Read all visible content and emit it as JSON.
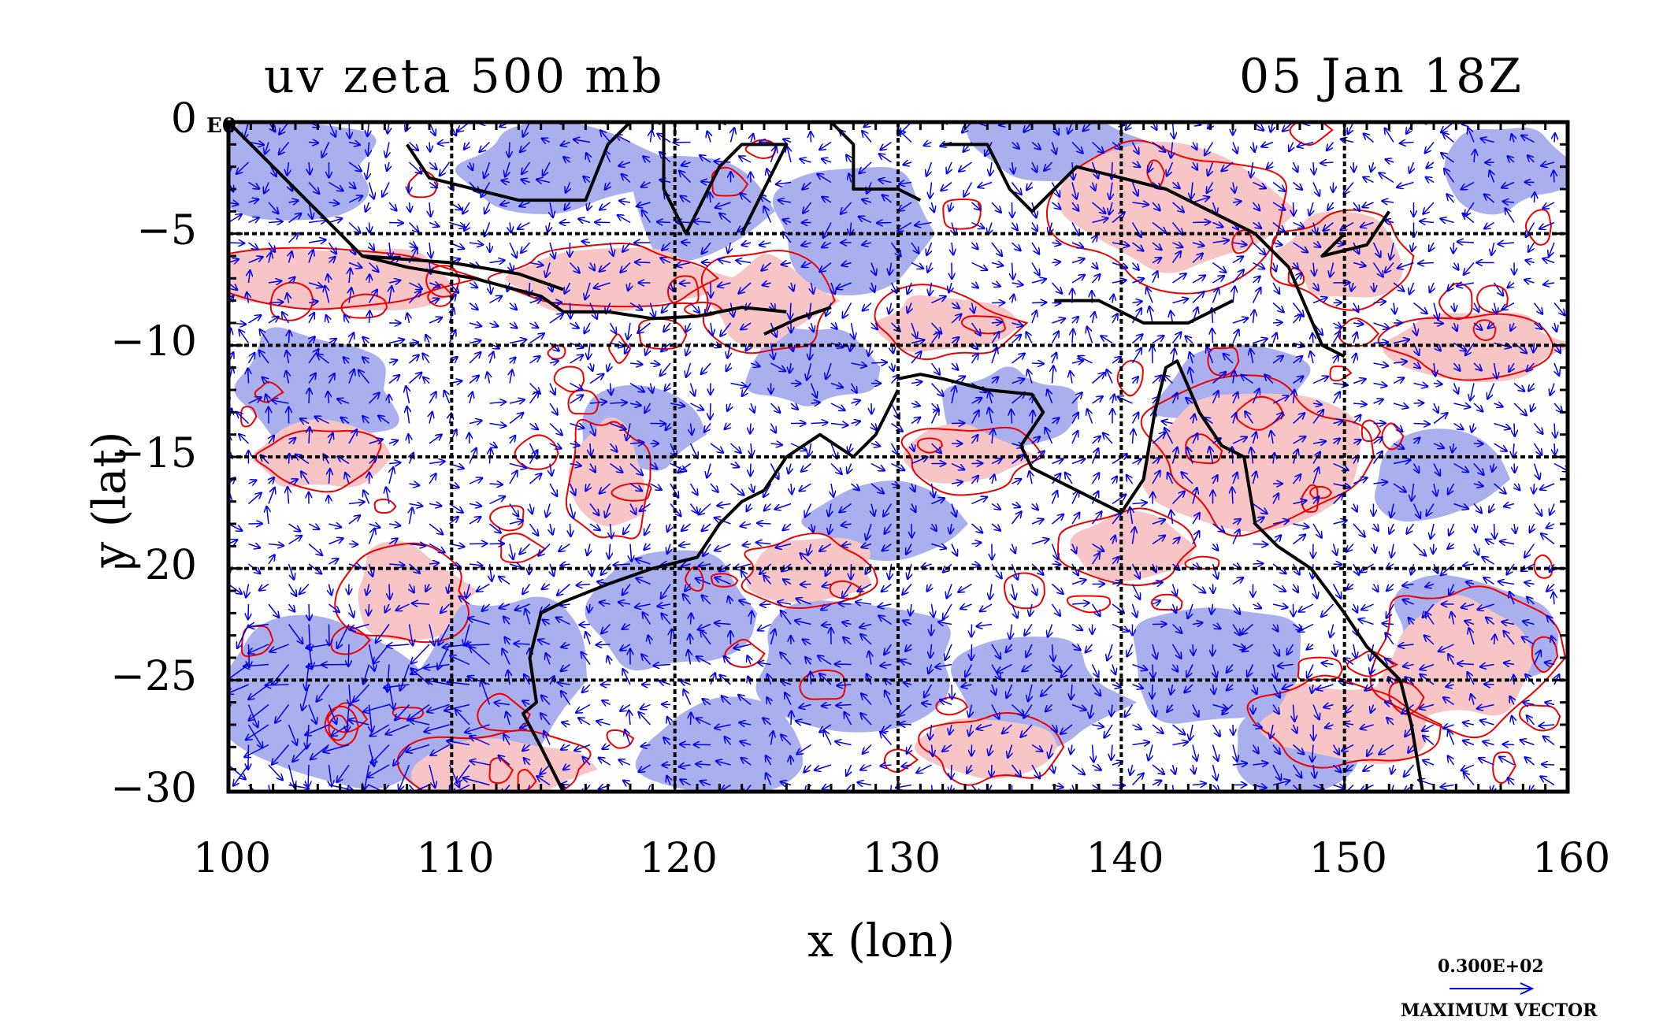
{
  "title_left": "uv zeta 500 mb",
  "title_right": "05 Jan 18Z",
  "corner_label": "E0",
  "xlabel": "x (lon)",
  "ylabel": "y (lat)",
  "x_ticks": [
    "100",
    "110",
    "120",
    "130",
    "140",
    "150",
    "160"
  ],
  "y_ticks": [
    "0",
    "−5",
    "−10",
    "−15",
    "−20",
    "−25",
    "−30"
  ],
  "legend": {
    "value": "0.300E+02",
    "label": "MAXIMUM VECTOR"
  },
  "colors": {
    "positive_fill": "#f7c5c5",
    "negative_fill": "#aab0ee",
    "contour": "#ee0000",
    "vector": "#0000ee",
    "coast": "#000000"
  },
  "chart_data": {
    "type": "map",
    "fields": [
      "u",
      "v",
      "zeta"
    ],
    "level": "500 mb",
    "time": "05 Jan 18Z",
    "xlim": [
      100,
      160
    ],
    "ylim": [
      -30,
      0
    ],
    "x_ticks": [
      100,
      110,
      120,
      130,
      140,
      150,
      160
    ],
    "y_ticks": [
      0,
      -5,
      -10,
      -15,
      -20,
      -25,
      -30
    ],
    "grid": true,
    "max_vector": 30
  }
}
